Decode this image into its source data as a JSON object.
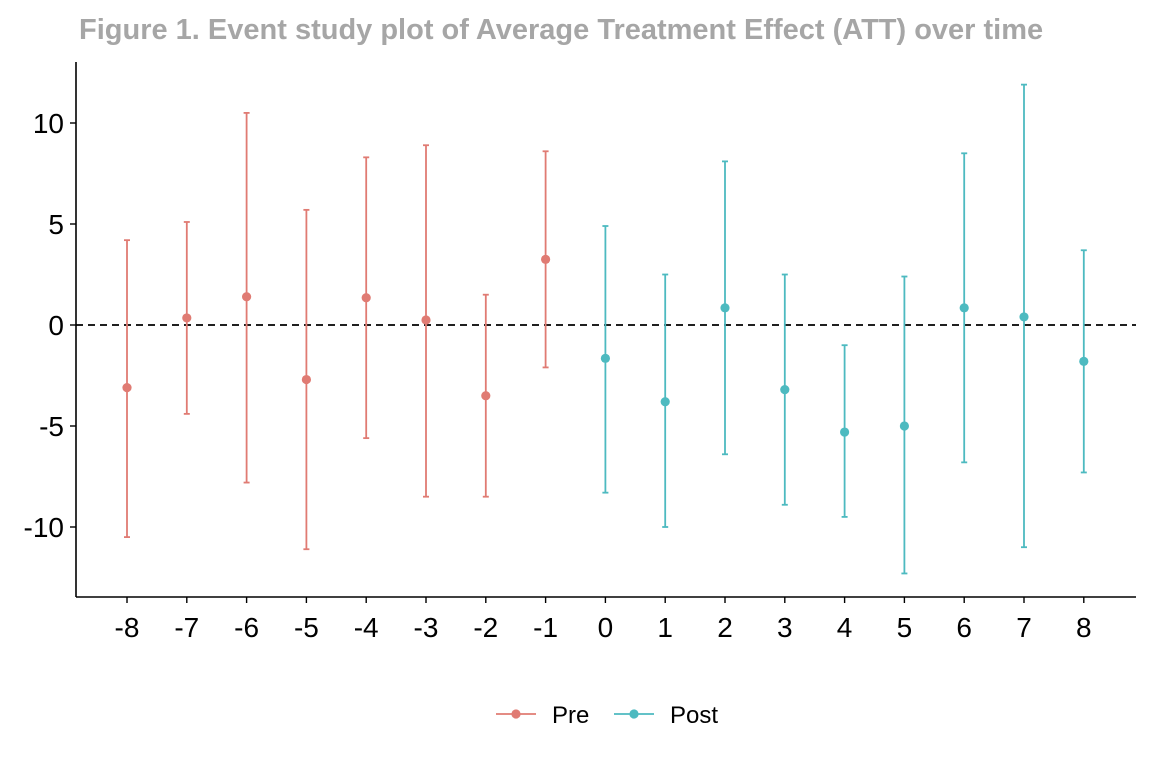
{
  "chart_data": {
    "type": "errorbar",
    "title": "Figure 1. Event study plot of Average Treatment Effect (ATT) over time",
    "xlabel": "",
    "ylabel": "",
    "x_ticks": [
      "-8",
      "-7",
      "-6",
      "-5",
      "-4",
      "-3",
      "-2",
      "-1",
      "0",
      "1",
      "2",
      "3",
      "4",
      "5",
      "6",
      "7",
      "8"
    ],
    "y_ticks": [
      "10",
      "5",
      "0",
      "-5",
      "-10"
    ],
    "ylim": [
      -13.8,
      13.2
    ],
    "reference_line": {
      "y": 0,
      "style": "dashed"
    },
    "grid": false,
    "legend_position": "bottom",
    "colors": {
      "Pre": "#E07B73",
      "Post": "#4DBAC0",
      "title": "#A6A6A6"
    },
    "series": [
      {
        "name": "Pre",
        "points": [
          {
            "x": -8,
            "y": -3.1,
            "lower": -10.5,
            "upper": 4.2
          },
          {
            "x": -7,
            "y": 0.35,
            "lower": -4.4,
            "upper": 5.1
          },
          {
            "x": -6,
            "y": 1.4,
            "lower": -7.8,
            "upper": 10.5
          },
          {
            "x": -5,
            "y": -2.7,
            "lower": -11.1,
            "upper": 5.7
          },
          {
            "x": -4,
            "y": 1.35,
            "lower": -5.6,
            "upper": 8.3
          },
          {
            "x": -3,
            "y": 0.25,
            "lower": -8.5,
            "upper": 8.9
          },
          {
            "x": -2,
            "y": -3.5,
            "lower": -8.5,
            "upper": 1.5
          },
          {
            "x": -1,
            "y": 3.25,
            "lower": -2.1,
            "upper": 8.6
          }
        ]
      },
      {
        "name": "Post",
        "points": [
          {
            "x": 0,
            "y": -1.65,
            "lower": -8.3,
            "upper": 4.9
          },
          {
            "x": 1,
            "y": -3.8,
            "lower": -10.0,
            "upper": 2.5
          },
          {
            "x": 2,
            "y": 0.85,
            "lower": -6.4,
            "upper": 8.1
          },
          {
            "x": 3,
            "y": -3.2,
            "lower": -8.9,
            "upper": 2.5
          },
          {
            "x": 4,
            "y": -5.3,
            "lower": -9.5,
            "upper": -1.0
          },
          {
            "x": 5,
            "y": -5.0,
            "lower": -12.3,
            "upper": 2.4
          },
          {
            "x": 6,
            "y": 0.85,
            "lower": -6.8,
            "upper": 8.5
          },
          {
            "x": 7,
            "y": 0.4,
            "lower": -11.0,
            "upper": 11.9
          },
          {
            "x": 8,
            "y": -1.8,
            "lower": -7.3,
            "upper": 3.7
          }
        ]
      }
    ]
  }
}
